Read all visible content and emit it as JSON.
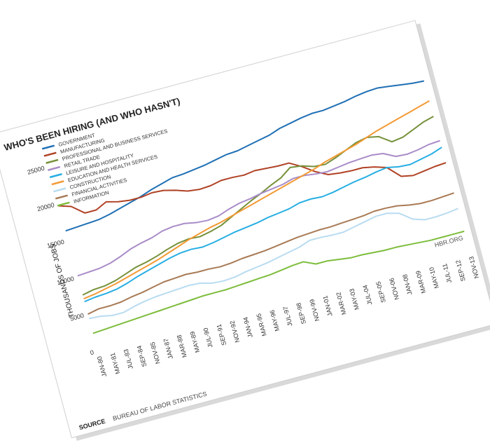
{
  "chart_data": {
    "type": "line",
    "title": "WHO'S BEEN HIRING (AND WHO HASN'T)",
    "ylabel": "THOUSANDS OF JOBS",
    "ylim": [
      0,
      25000
    ],
    "y_ticks": [
      "0",
      "5000",
      "10000",
      "15000",
      "20000",
      "25000"
    ],
    "x_ticks": [
      "JAN-80",
      "MAY-81",
      "JUL-83",
      "SEP-84",
      "NOV-85",
      "JAN-87",
      "MAR-88",
      "MAY-89",
      "JUL-90",
      "SEP-91",
      "NOV-92",
      "JAN-94",
      "MAR-95",
      "MAY-96",
      "JUL-97",
      "SEP-98",
      "NOV-99",
      "JAN-01",
      "MAR-02",
      "MAY-03",
      "JUL-04",
      "SEP-05",
      "NOV-06",
      "JAN-08",
      "MAR-09",
      "MAY-10",
      "JUL-11",
      "SEP-12",
      "NOV-13"
    ],
    "source_label": "SOURCE",
    "source_text": "BUREAU OF LABOR STATISTICS",
    "credit": "HBR.ORG",
    "legend_position": "top-left",
    "grid": false,
    "x": [
      1980,
      1981,
      1982,
      1983,
      1984,
      1985,
      1986,
      1987,
      1988,
      1989,
      1990,
      1991,
      1992,
      1993,
      1994,
      1995,
      1996,
      1997,
      1998,
      1999,
      2000,
      2001,
      2002,
      2003,
      2004,
      2005,
      2006,
      2007,
      2008,
      2009,
      2010,
      2011,
      2012,
      2013
    ],
    "series": [
      {
        "name": "GOVERNMENT",
        "color": "#1f6fb4",
        "values": [
          16300,
          16400,
          16500,
          16600,
          16900,
          17300,
          17700,
          18100,
          18600,
          19000,
          19400,
          19500,
          19700,
          19900,
          20200,
          20500,
          20600,
          20900,
          21200,
          21500,
          22000,
          22300,
          22600,
          22800,
          22800,
          23000,
          23200,
          23500,
          23700,
          23800,
          23600,
          23400,
          23200,
          23100
        ]
      },
      {
        "name": "MANUFACTURING",
        "color": "#b04225",
        "values": [
          19700,
          19200,
          17900,
          17900,
          18600,
          18200,
          18000,
          18000,
          18200,
          18100,
          17700,
          17200,
          17000,
          17100,
          17400,
          17400,
          17300,
          17500,
          17400,
          17300,
          17300,
          16400,
          15300,
          14500,
          14300,
          14200,
          14200,
          13900,
          13400,
          11800,
          11500,
          11700,
          11900,
          12000
        ]
      },
      {
        "name": "PROFESSIONAL AND BUSINESS SERVICES",
        "color": "#76913a",
        "values": [
          7600,
          7900,
          8000,
          8300,
          8800,
          9300,
          9600,
          10000,
          10500,
          10900,
          11100,
          11000,
          11300,
          11700,
          12400,
          13100,
          13800,
          14400,
          15100,
          15700,
          16700,
          16500,
          16000,
          15900,
          16400,
          17000,
          17600,
          17900,
          17600,
          16500,
          16700,
          17300,
          17900,
          18300
        ]
      },
      {
        "name": "RETAIL TRADE",
        "color": "#a98cc8",
        "values": [
          10200,
          10300,
          10400,
          10700,
          11200,
          11800,
          12200,
          12500,
          13000,
          13200,
          13200,
          12900,
          12800,
          13000,
          13500,
          13900,
          14100,
          14400,
          14600,
          14800,
          15200,
          15200,
          15000,
          14900,
          15100,
          15300,
          15400,
          15500,
          15300,
          14500,
          14400,
          14600,
          14900,
          15000
        ]
      },
      {
        "name": "LEISURE AND HOSPITALITY",
        "color": "#27aee3",
        "values": [
          6700,
          6900,
          7000,
          7200,
          7600,
          8100,
          8500,
          8900,
          9300,
          9600,
          9700,
          9600,
          9800,
          10100,
          10400,
          10600,
          10800,
          11100,
          11300,
          11500,
          11900,
          12000,
          11900,
          12100,
          12400,
          12700,
          12900,
          13200,
          13400,
          13100,
          13000,
          13300,
          13600,
          14100
        ]
      },
      {
        "name": "EDUCATION AND HEALTH SERVICES",
        "color": "#f39a34",
        "values": [
          7100,
          7300,
          7600,
          7900,
          8300,
          8700,
          9100,
          9500,
          10000,
          10500,
          11000,
          11400,
          11800,
          12100,
          12500,
          12900,
          13300,
          13700,
          14100,
          14500,
          14900,
          15300,
          15700,
          16200,
          16600,
          17000,
          17400,
          17900,
          18400,
          18800,
          19200,
          19600,
          20000,
          20400
        ]
      },
      {
        "name": "CONSTRUCTION",
        "color": "#b9dcf1",
        "values": [
          4400,
          4300,
          4000,
          4000,
          4400,
          4700,
          4900,
          5000,
          5100,
          5200,
          5100,
          4700,
          4600,
          4700,
          5000,
          5200,
          5400,
          5700,
          6000,
          6300,
          6800,
          6800,
          6700,
          6700,
          7000,
          7300,
          7600,
          7600,
          7200,
          6000,
          5500,
          5500,
          5600,
          5800
        ]
      },
      {
        "name": "FINANCIAL ACTIVITIES",
        "color": "#a87a55",
        "values": [
          5000,
          5300,
          5300,
          5400,
          5700,
          5900,
          6200,
          6500,
          6600,
          6700,
          6600,
          6600,
          6500,
          6600,
          6800,
          6900,
          7000,
          7200,
          7400,
          7600,
          7700,
          7800,
          7800,
          7900,
          8000,
          8100,
          8300,
          8300,
          8200,
          7900,
          7700,
          7700,
          7800,
          7900
        ]
      },
      {
        "name": "INFORMATION",
        "color": "#7dbd3c",
        "values": [
          2400,
          2500,
          2600,
          2700,
          2800,
          2900,
          3000,
          3100,
          3200,
          3300,
          3400,
          3400,
          3400,
          3500,
          3600,
          3700,
          3800,
          4000,
          4200,
          4300,
          3600,
          3600,
          3400,
          3200,
          3200,
          3100,
          3000,
          3000,
          2900,
          2800,
          2700,
          2700,
          2700,
          2700
        ]
      }
    ]
  }
}
